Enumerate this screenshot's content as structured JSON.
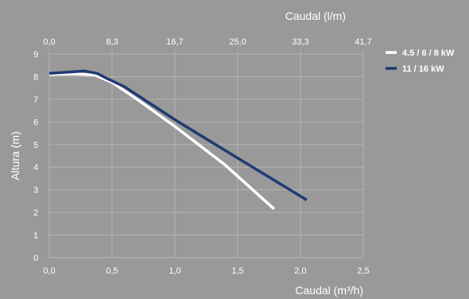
{
  "chart_data": {
    "type": "line",
    "xlabel": "Caudal (m³/h)",
    "x2label": "Caudal (l/m)",
    "ylabel": "Altura (m)",
    "xlim": [
      0,
      2.5
    ],
    "ylim": [
      0,
      9
    ],
    "x_ticks": [
      "0,0",
      "0,5",
      "1,0",
      "1,5",
      "2,0",
      "2,5"
    ],
    "x2_ticks": [
      "0,0",
      "8,3",
      "16,7",
      "25,0",
      "33,3",
      "41,7"
    ],
    "y_ticks": [
      "0",
      "1",
      "2",
      "3",
      "4",
      "5",
      "6",
      "7",
      "8",
      "9"
    ],
    "grid": true,
    "legend_position": "top-right",
    "series": [
      {
        "name": "4.5 / 6 / 8 kW",
        "color": "#ffffff",
        "points": [
          [
            0.0,
            8.1
          ],
          [
            0.2,
            8.12
          ],
          [
            0.36,
            8.08
          ],
          [
            0.5,
            7.75
          ],
          [
            0.7,
            7.0
          ],
          [
            1.0,
            5.8
          ],
          [
            1.4,
            4.1
          ],
          [
            1.79,
            2.15
          ]
        ]
      },
      {
        "name": "11 / 16 kW",
        "color": "#1f3b73",
        "points": [
          [
            0.0,
            8.15
          ],
          [
            0.15,
            8.2
          ],
          [
            0.28,
            8.25
          ],
          [
            0.38,
            8.15
          ],
          [
            0.45,
            7.95
          ],
          [
            0.6,
            7.55
          ],
          [
            1.0,
            6.1
          ],
          [
            1.5,
            4.4
          ],
          [
            2.05,
            2.55
          ]
        ]
      }
    ]
  }
}
